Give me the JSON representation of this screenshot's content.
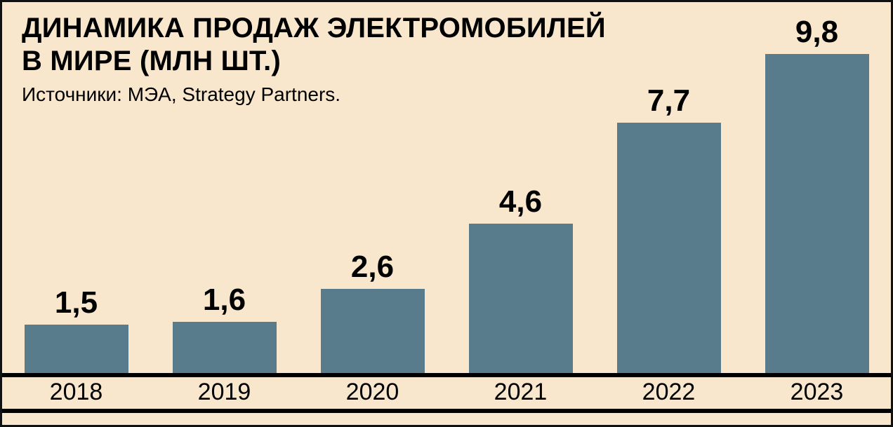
{
  "header": {
    "title_line1": "ДИНАМИКА ПРОДАЖ ЭЛЕКТРОМОБИЛЕЙ",
    "title_line2": "В МИРЕ (МЛН ШТ.)",
    "source": "Источники: МЭА, Strategy Partners."
  },
  "colors": {
    "background": "#f8e7cd",
    "bar": "#597c8c",
    "text": "#000000",
    "axis": "#000000"
  },
  "chart_data": {
    "type": "bar",
    "title": "ДИНАМИКА ПРОДАЖ ЭЛЕКТРОМОБИЛЕЙ В МИРЕ (МЛН ШТ.)",
    "source": "Источники: МЭА, Strategy Partners.",
    "categories": [
      "2018",
      "2019",
      "2020",
      "2021",
      "2022",
      "2023"
    ],
    "values": [
      1.5,
      1.6,
      2.6,
      4.6,
      7.7,
      9.8
    ],
    "value_labels": [
      "1,5",
      "1,6",
      "2,6",
      "4,6",
      "7,7",
      "9,8"
    ],
    "xlabel": "",
    "ylabel": "млн шт.",
    "ylim": [
      0,
      9.8
    ],
    "grid": false,
    "legend": "none"
  }
}
